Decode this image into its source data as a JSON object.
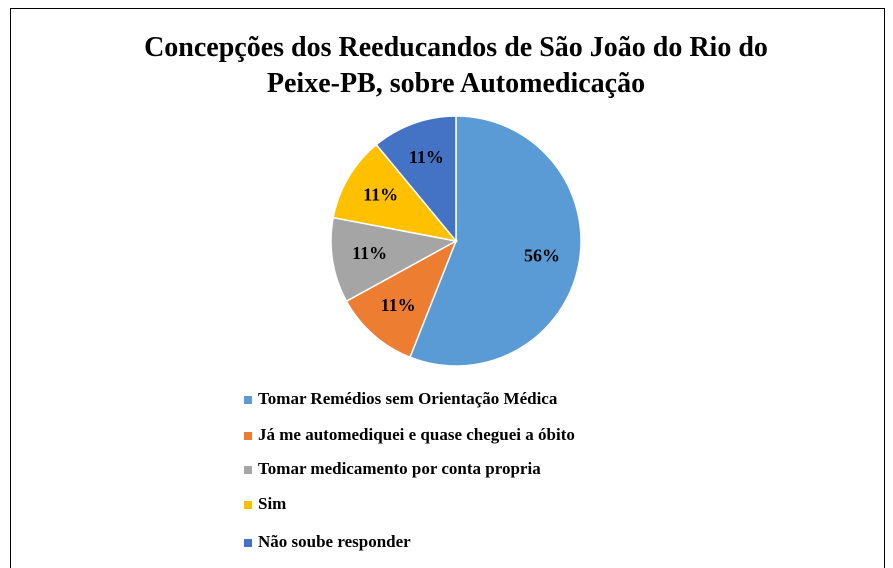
{
  "chart_data": {
    "type": "pie",
    "title": "Concepções dos  Reeducandos de São João do Rio do Peixe-PB, sobre  Automedicação",
    "categories": [
      "Tomar Remédios sem Orientação Médica",
      "Já me automediquei e quase cheguei a óbito",
      "Tomar medicamento por conta propria",
      "Sim",
      "Não soube responder"
    ],
    "values": [
      56,
      11,
      11,
      11,
      11
    ],
    "value_labels": [
      "56%",
      "11%",
      "11%",
      "11%",
      "11%"
    ],
    "colors": [
      "#5B9BD5",
      "#ED7D31",
      "#A5A5A5",
      "#FFC000",
      "#4472C4"
    ],
    "legend": "bottom"
  }
}
